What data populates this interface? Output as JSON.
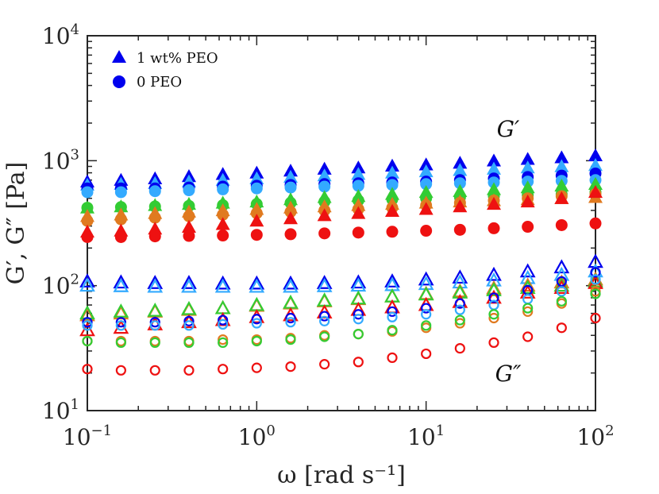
{
  "chart_data": {
    "type": "scatter",
    "x_scale": "log",
    "y_scale": "log",
    "xlim": [
      0.1,
      100
    ],
    "ylim": [
      10,
      10000
    ],
    "xlabel": "ω [rad s⁻¹]",
    "ylabel": "G′, G″ [Pa]",
    "x_ticks": [
      {
        "value": 0.1,
        "base": "10",
        "exp": "−1"
      },
      {
        "value": 1,
        "base": "10",
        "exp": "0"
      },
      {
        "value": 10,
        "base": "10",
        "exp": "1"
      },
      {
        "value": 100,
        "base": "10",
        "exp": "2"
      }
    ],
    "y_ticks": [
      {
        "value": 10,
        "base": "10",
        "exp": "1"
      },
      {
        "value": 100,
        "base": "10",
        "exp": "2"
      },
      {
        "value": 1000,
        "base": "10",
        "exp": "3"
      },
      {
        "value": 10000,
        "base": "10",
        "exp": "4"
      }
    ],
    "annotations": [
      {
        "text": "G′",
        "x": 30,
        "y": 1500
      },
      {
        "text": "G″",
        "x": 30,
        "y": 20
      }
    ],
    "legend": {
      "position": "top-left",
      "entries": [
        {
          "label": "1 wt% PEO",
          "marker": "triangle",
          "color": "#0000ee"
        },
        {
          "label": "0 PEO",
          "marker": "circle",
          "color": "#0000ee"
        }
      ]
    },
    "x": [
      0.1,
      0.158,
      0.251,
      0.398,
      0.631,
      1.0,
      1.585,
      2.512,
      3.981,
      6.31,
      10.0,
      15.85,
      25.12,
      39.81,
      63.1,
      100.0
    ],
    "series": [
      {
        "name": "blue-G′-PEO",
        "color": "#0000ee",
        "marker": "triangle",
        "filled": true,
        "values": [
          680,
          700,
          720,
          750,
          780,
          800,
          830,
          860,
          880,
          910,
          930,
          960,
          1000,
          1030,
          1060,
          1100
        ]
      },
      {
        "name": "lightblue-G′-PEO",
        "color": "#33aaff",
        "marker": "triangle",
        "filled": true,
        "values": [
          640,
          650,
          660,
          680,
          700,
          720,
          740,
          760,
          780,
          800,
          820,
          840,
          860,
          880,
          900,
          920
        ]
      },
      {
        "name": "blue-G′-0",
        "color": "#0000ee",
        "marker": "circle",
        "filled": true,
        "values": [
          600,
          600,
          600,
          610,
          620,
          630,
          640,
          650,
          660,
          670,
          680,
          700,
          720,
          740,
          760,
          790
        ]
      },
      {
        "name": "lightblue-G′-0",
        "color": "#33aaff",
        "marker": "circle",
        "filled": true,
        "values": [
          560,
          560,
          570,
          580,
          590,
          600,
          610,
          620,
          630,
          640,
          650,
          660,
          670,
          680,
          690,
          700
        ]
      },
      {
        "name": "green-G′-PEO",
        "color": "#33cc33",
        "marker": "triangle",
        "filled": true,
        "values": [
          420,
          430,
          440,
          450,
          460,
          470,
          490,
          510,
          520,
          540,
          560,
          570,
          590,
          610,
          630,
          650
        ]
      },
      {
        "name": "green-G′-0",
        "color": "#33cc33",
        "marker": "circle",
        "filled": true,
        "values": [
          420,
          425,
          430,
          435,
          440,
          450,
          460,
          470,
          480,
          490,
          500,
          510,
          520,
          530,
          540,
          560
        ]
      },
      {
        "name": "orange-G′-PEO",
        "color": "#e07a1f",
        "marker": "triangle",
        "filled": true,
        "values": [
          360,
          370,
          380,
          390,
          400,
          410,
          420,
          430,
          440,
          450,
          460,
          470,
          480,
          490,
          500,
          510
        ]
      },
      {
        "name": "orange-G′-0",
        "color": "#e07a1f",
        "marker": "circle",
        "filled": true,
        "values": [
          330,
          340,
          350,
          360,
          370,
          380,
          390,
          400,
          410,
          420,
          440,
          460,
          480,
          500,
          520,
          540
        ]
      },
      {
        "name": "red-G′-PEO",
        "color": "#ee1111",
        "marker": "triangle",
        "filled": true,
        "values": [
          270,
          275,
          285,
          295,
          310,
          330,
          345,
          365,
          380,
          395,
          410,
          430,
          450,
          470,
          500,
          560
        ]
      },
      {
        "name": "red-G′-0",
        "color": "#ee1111",
        "marker": "circle",
        "filled": true,
        "values": [
          245,
          245,
          248,
          250,
          252,
          255,
          258,
          262,
          266,
          270,
          275,
          280,
          288,
          296,
          305,
          315
        ]
      },
      {
        "name": "blue-G″-PEO",
        "color": "#0000ee",
        "marker": "triangle",
        "filled": false,
        "values": [
          108,
          106,
          105,
          105,
          104,
          104,
          104,
          105,
          106,
          108,
          112,
          116,
          122,
          130,
          140,
          155
        ]
      },
      {
        "name": "lightblue-G″-PEO",
        "color": "#33aaff",
        "marker": "triangle",
        "filled": false,
        "values": [
          100,
          99,
          98,
          98,
          98,
          98,
          98,
          99,
          100,
          101,
          103,
          106,
          110,
          115,
          122,
          130
        ]
      },
      {
        "name": "orange-G″-PEO",
        "color": "#e07a1f",
        "marker": "triangle",
        "filled": false,
        "values": [
          58,
          60,
          62,
          64,
          66,
          69,
          72,
          75,
          78,
          82,
          86,
          90,
          95,
          100,
          106,
          112
        ]
      },
      {
        "name": "green-G″-PEO",
        "color": "#33cc33",
        "marker": "triangle",
        "filled": false,
        "values": [
          60,
          62,
          63,
          65,
          66,
          70,
          73,
          76,
          79,
          82,
          85,
          88,
          92,
          96,
          100,
          108
        ]
      },
      {
        "name": "red-G″-PEO",
        "color": "#ee1111",
        "marker": "triangle",
        "filled": false,
        "values": [
          44,
          46,
          49,
          51,
          53,
          56,
          58,
          61,
          64,
          67,
          70,
          74,
          80,
          88,
          96,
          105
        ]
      },
      {
        "name": "blue-G″-0",
        "color": "#0000ee",
        "marker": "circle",
        "filled": false,
        "values": [
          51,
          51,
          51,
          52,
          53,
          54,
          55,
          57,
          59,
          62,
          66,
          72,
          80,
          92,
          108,
          128
        ]
      },
      {
        "name": "lightblue-G″-0",
        "color": "#33aaff",
        "marker": "circle",
        "filled": false,
        "values": [
          48,
          48,
          48,
          48,
          49,
          50,
          51,
          52,
          54,
          56,
          59,
          64,
          70,
          78,
          90,
          112
        ]
      },
      {
        "name": "orange-G″-0",
        "color": "#e07a1f",
        "marker": "circle",
        "filled": false,
        "values": [
          36,
          36,
          36,
          36,
          37,
          37,
          38,
          40,
          41,
          43,
          46,
          50,
          55,
          62,
          72,
          90
        ]
      },
      {
        "name": "green-G″-0",
        "color": "#33cc33",
        "marker": "circle",
        "filled": false,
        "values": [
          36,
          35,
          35,
          35,
          35,
          36,
          37,
          39,
          41,
          44,
          48,
          53,
          59,
          66,
          75,
          86
        ]
      },
      {
        "name": "red-G″-0",
        "color": "#ee1111",
        "marker": "circle",
        "filled": false,
        "values": [
          21.5,
          21,
          21,
          21,
          21.5,
          22,
          22.5,
          23.5,
          24.5,
          26.5,
          28.5,
          31.5,
          35,
          39,
          46,
          55
        ]
      }
    ]
  }
}
